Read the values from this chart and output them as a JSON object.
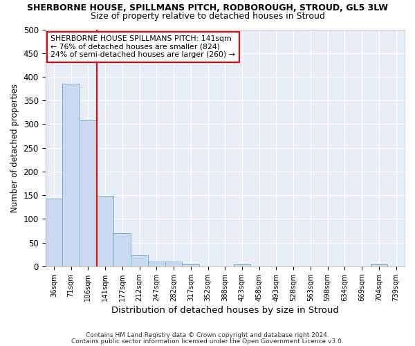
{
  "title1": "SHERBORNE HOUSE, SPILLMANS PITCH, RODBOROUGH, STROUD, GL5 3LW",
  "title2": "Size of property relative to detached houses in Stroud",
  "xlabel": "Distribution of detached houses by size in Stroud",
  "ylabel": "Number of detached properties",
  "footnote1": "Contains HM Land Registry data © Crown copyright and database right 2024.",
  "footnote2": "Contains public sector information licensed under the Open Government Licence v3.0.",
  "bin_labels": [
    "36sqm",
    "71sqm",
    "106sqm",
    "141sqm",
    "177sqm",
    "212sqm",
    "247sqm",
    "282sqm",
    "317sqm",
    "352sqm",
    "388sqm",
    "423sqm",
    "458sqm",
    "493sqm",
    "528sqm",
    "563sqm",
    "598sqm",
    "634sqm",
    "669sqm",
    "704sqm",
    "739sqm"
  ],
  "bar_values": [
    143,
    385,
    308,
    149,
    70,
    23,
    10,
    10,
    5,
    0,
    0,
    5,
    0,
    0,
    0,
    0,
    0,
    0,
    0,
    5,
    0
  ],
  "bar_color": "#c8d9f0",
  "bar_edge_color": "#7bafd4",
  "marker_bin_index": 3,
  "marker_line_label": "SHERBORNE HOUSE SPILLMANS PITCH: 141sqm",
  "marker_smaller_pct": "← 76% of detached houses are smaller (824)",
  "marker_larger_pct": "24% of semi-detached houses are larger (260) →",
  "marker_color": "red",
  "ylim": [
    0,
    500
  ],
  "yticks": [
    0,
    50,
    100,
    150,
    200,
    250,
    300,
    350,
    400,
    450,
    500
  ],
  "plot_bg_color": "#e8eef8",
  "grid_color": "white",
  "title1_fontsize": 9,
  "title2_fontsize": 9
}
